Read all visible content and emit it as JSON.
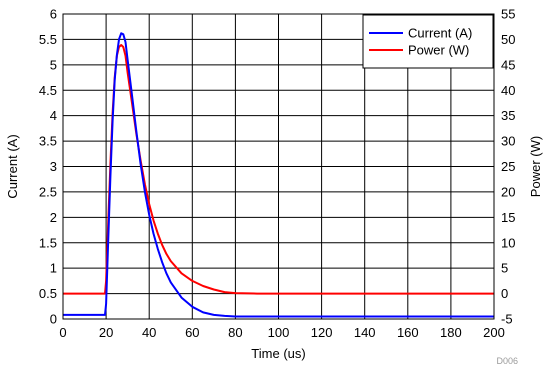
{
  "chart_data": {
    "type": "line",
    "title": "",
    "xlabel": "Time (us)",
    "ylabel": "Current (A)",
    "y2label": "Power (W)",
    "figure_code": "D006",
    "xlim": [
      0,
      200
    ],
    "ylim": [
      0,
      6
    ],
    "y2lim": [
      -5,
      55
    ],
    "x_ticks": [
      0,
      20,
      40,
      60,
      80,
      100,
      120,
      140,
      160,
      180,
      200
    ],
    "y_ticks": [
      0,
      0.5,
      1,
      1.5,
      2,
      2.5,
      3,
      3.5,
      4,
      4.5,
      5,
      5.5,
      6
    ],
    "y2_ticks": [
      -5,
      0,
      5,
      10,
      15,
      20,
      25,
      30,
      35,
      40,
      45,
      50,
      55
    ],
    "grid": true,
    "legend_position": "top-right",
    "series": [
      {
        "name": "Current (A)",
        "axis": "left",
        "color": "#0000ff",
        "x": [
          0,
          10,
          19.5,
          20,
          21,
          22,
          23,
          24,
          25,
          26,
          27,
          28,
          29,
          30,
          32,
          34,
          36,
          38,
          40,
          42,
          44,
          46,
          48,
          50,
          55,
          60,
          65,
          70,
          75,
          80,
          90,
          100,
          120,
          140,
          160,
          180,
          200
        ],
        "values": [
          0.08,
          0.08,
          0.08,
          0.3,
          1.6,
          2.8,
          3.9,
          4.7,
          5.2,
          5.5,
          5.62,
          5.6,
          5.45,
          5.1,
          4.4,
          3.7,
          3.05,
          2.5,
          2.05,
          1.68,
          1.38,
          1.12,
          0.9,
          0.72,
          0.42,
          0.24,
          0.13,
          0.08,
          0.06,
          0.05,
          0.05,
          0.05,
          0.05,
          0.05,
          0.05,
          0.05,
          0.05
        ]
      },
      {
        "name": "Power (W)",
        "axis": "right",
        "color": "#ff0000",
        "x": [
          0,
          10,
          19.5,
          20,
          21,
          22,
          23,
          24,
          25,
          26,
          27,
          28,
          29,
          30,
          32,
          34,
          36,
          38,
          40,
          42,
          44,
          46,
          48,
          50,
          55,
          60,
          65,
          70,
          75,
          80,
          90,
          100,
          120,
          140,
          160,
          180,
          200
        ],
        "values": [
          0,
          0,
          0,
          2.5,
          14.5,
          25.5,
          35.5,
          42.5,
          46.8,
          48.5,
          48.9,
          48.5,
          46.8,
          43.5,
          37.5,
          31.5,
          26.2,
          21.5,
          17.6,
          14.4,
          11.8,
          9.6,
          7.8,
          6.4,
          4.0,
          2.5,
          1.5,
          0.8,
          0.3,
          0.1,
          0.0,
          0.0,
          0.0,
          0.0,
          0.0,
          0.0,
          0.0
        ]
      }
    ]
  }
}
